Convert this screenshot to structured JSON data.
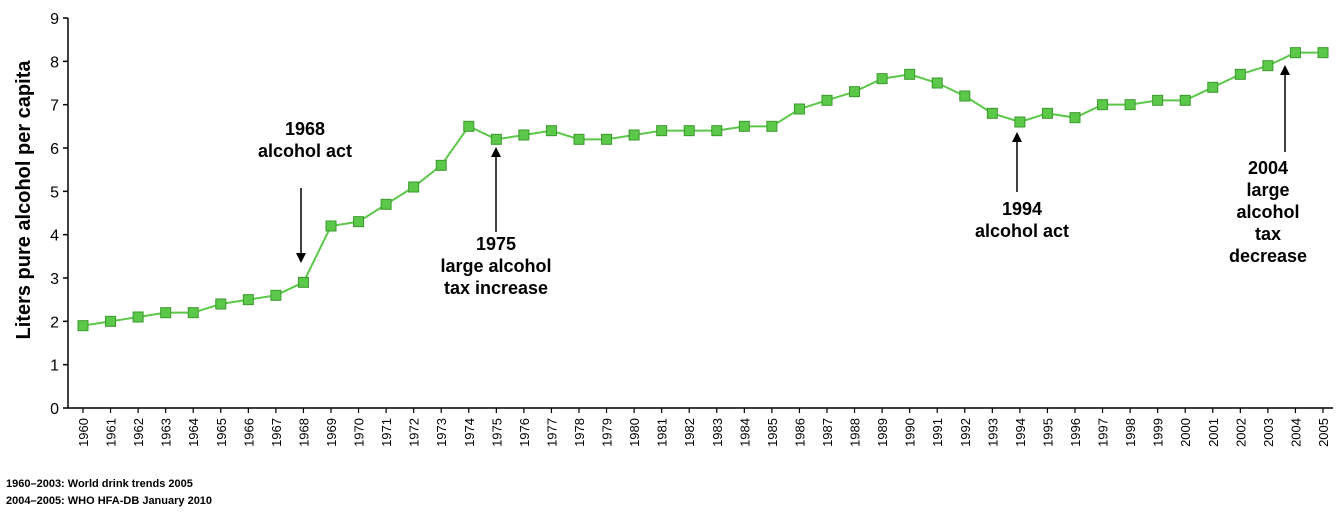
{
  "chart_data": {
    "type": "line",
    "ylabel": "Liters pure alcohol per capita",
    "xlabel": "",
    "ylim": [
      0,
      9
    ],
    "yticks": [
      0,
      1,
      2,
      3,
      4,
      5,
      6,
      7,
      8,
      9
    ],
    "x": [
      "1960",
      "1961",
      "1962",
      "1963",
      "1964",
      "1965",
      "1966",
      "1967",
      "1968",
      "1969",
      "1970",
      "1971",
      "1972",
      "1973",
      "1974",
      "1975",
      "1976",
      "1977",
      "1978",
      "1979",
      "1980",
      "1981",
      "1982",
      "1983",
      "1984",
      "1985",
      "1986",
      "1987",
      "1988",
      "1989",
      "1990",
      "1991",
      "1992",
      "1993",
      "1994",
      "1995",
      "1996",
      "1997",
      "1998",
      "1999",
      "2000",
      "2001",
      "2002",
      "2003",
      "2004",
      "2005"
    ],
    "series": [
      {
        "values": [
          1.9,
          2.0,
          2.1,
          2.2,
          2.2,
          2.4,
          2.5,
          2.6,
          2.9,
          4.2,
          4.3,
          4.7,
          5.1,
          5.6,
          6.5,
          6.2,
          6.3,
          6.4,
          6.2,
          6.2,
          6.3,
          6.4,
          6.4,
          6.4,
          6.5,
          6.5,
          6.9,
          7.1,
          7.3,
          7.6,
          7.7,
          7.5,
          7.2,
          6.8,
          6.6,
          6.8,
          6.7,
          7.0,
          7.0,
          7.1,
          7.1,
          7.4,
          7.7,
          7.9,
          8.2,
          8.2
        ],
        "color": "#5cc84a",
        "marker": "square"
      }
    ],
    "grid": false,
    "legend": "none",
    "annotations": [
      {
        "lines": [
          "1968",
          "alcohol act"
        ],
        "year": "1968",
        "arrow": "down"
      },
      {
        "lines": [
          "1975",
          "large alcohol",
          "tax increase"
        ],
        "year": "1975",
        "arrow": "up"
      },
      {
        "lines": [
          "1994",
          "alcohol act"
        ],
        "year": "1994",
        "arrow": "up"
      },
      {
        "lines": [
          "2004",
          "large",
          "alcohol",
          "tax",
          "decrease"
        ],
        "year": "2004",
        "arrow": "up"
      }
    ]
  },
  "sources": [
    "1960–2003: World drink  trends 2005",
    "2004–2005: WHO HFA-DB January 2010"
  ]
}
